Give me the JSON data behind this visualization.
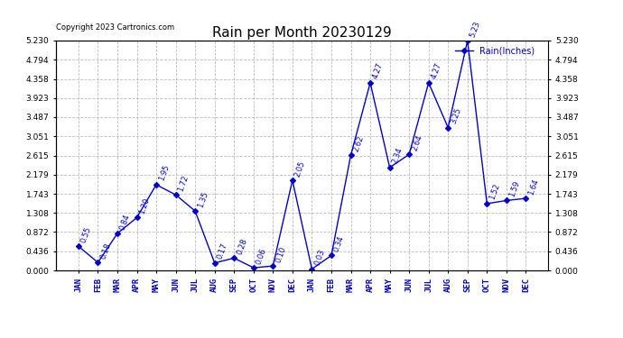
{
  "title": "Rain per Month 20230129",
  "copyright": "Copyright 2023 Cartronics.com",
  "legend_label": "Rain(Inches)",
  "months": [
    "JAN",
    "FEB",
    "MAR",
    "APR",
    "MAY",
    "JUN",
    "JUL",
    "AUG",
    "SEP",
    "OCT",
    "NOV",
    "DEC",
    "JAN",
    "FEB",
    "MAR",
    "APR",
    "MAY",
    "JUN",
    "JUL",
    "AUG",
    "SEP",
    "OCT",
    "NOV",
    "DEC"
  ],
  "values": [
    0.55,
    0.18,
    0.84,
    1.2,
    1.95,
    1.72,
    1.35,
    0.17,
    0.28,
    0.06,
    0.1,
    2.05,
    0.03,
    0.34,
    2.62,
    4.27,
    2.34,
    2.64,
    4.27,
    3.25,
    5.23,
    1.52,
    1.59,
    1.64
  ],
  "line_color": "#0000cc",
  "marker": "D",
  "marker_size": 3,
  "ylim": [
    0.0,
    5.23
  ],
  "yticks": [
    0.0,
    0.436,
    0.872,
    1.308,
    1.743,
    2.179,
    2.615,
    3.051,
    3.487,
    3.923,
    4.358,
    4.794,
    5.23
  ],
  "bg_color": "#ffffff",
  "grid_color": "#bbbbbb",
  "title_fontsize": 11,
  "annotation_fontsize": 6,
  "tick_fontsize": 6.5,
  "copyright_fontsize": 6,
  "legend_fontsize": 7,
  "figsize": [
    6.9,
    3.75
  ],
  "dpi": 100
}
